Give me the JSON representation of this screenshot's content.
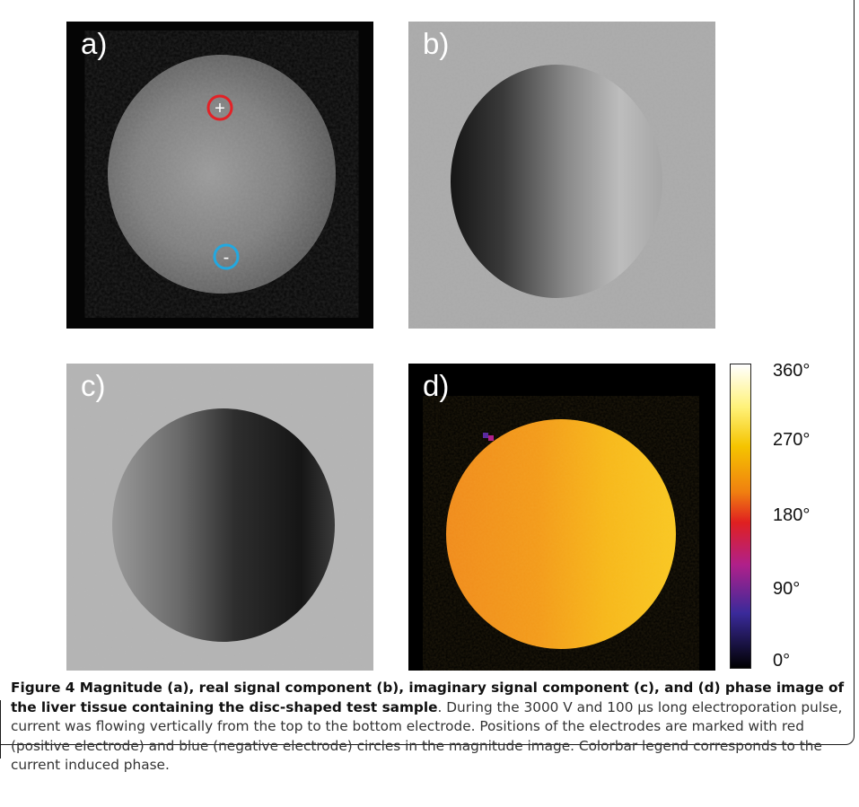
{
  "figure": {
    "panels": [
      {
        "label": "a)",
        "type": "magnitude"
      },
      {
        "label": "b)",
        "type": "real"
      },
      {
        "label": "c)",
        "type": "imaginary"
      },
      {
        "label": "d)",
        "type": "phase"
      }
    ],
    "electrodes": {
      "positive_symbol": "+",
      "negative_symbol": "-",
      "positive_color": "#e32126",
      "negative_color": "#22a8e0"
    },
    "colorbar": {
      "ticks": [
        "360°",
        "270°",
        "180°",
        "90°",
        "0°"
      ],
      "colors": [
        "#ffffff",
        "#fff27a",
        "#f5c400",
        "#f08010",
        "#e02020",
        "#b0208a",
        "#3a2a9a",
        "#000000"
      ]
    }
  },
  "caption": {
    "bold": "Figure 4 Magnitude (a), real signal component (b), imaginary signal component (c), and (d) phase image of the liver tissue containing the disc-shaped test sample",
    "text": ". During the 3000 V and 100 μs long electroporation pulse, current was flowing vertically from the top to the bottom electrode. Positions of the electrodes are marked with red (positive electrode) and blue (negative electrode) circles in the magnitude image. Colorbar legend corresponds to the current induced phase."
  }
}
